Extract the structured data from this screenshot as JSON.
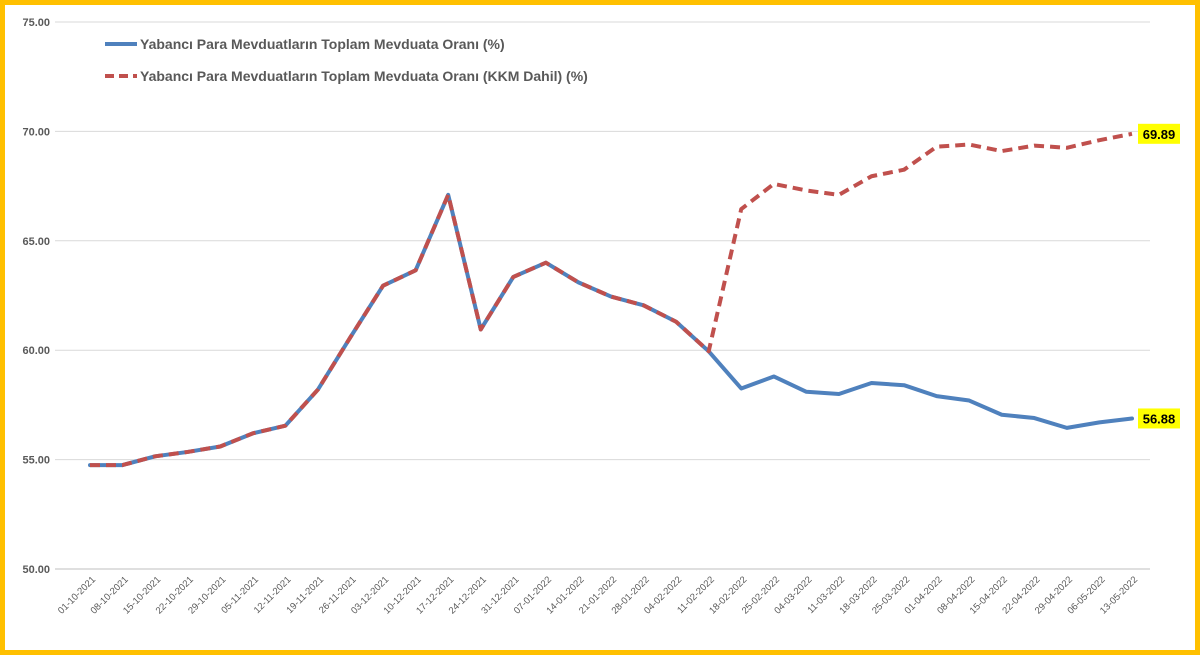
{
  "colors": {
    "frame": "#ffc000",
    "series_solid": "#4f81bd",
    "series_dashed": "#c0504d",
    "label_highlight": "#ffff00",
    "grid": "#d9d9d9"
  },
  "chart_data": {
    "type": "line",
    "title": "",
    "xlabel": "",
    "ylabel": "",
    "ylim": [
      50,
      75
    ],
    "yticks": [
      "50.00",
      "55.00",
      "60.00",
      "65.00",
      "70.00",
      "75.00"
    ],
    "grid": true,
    "legend_position": "top-left",
    "categories": [
      "01-10-2021",
      "08-10-2021",
      "15-10-2021",
      "22-10-2021",
      "29-10-2021",
      "05-11-2021",
      "12-11-2021",
      "19-11-2021",
      "26-11-2021",
      "03-12-2021",
      "10-12-2021",
      "17-12-2021",
      "24-12-2021",
      "31-12-2021",
      "07-01-2022",
      "14-01-2022",
      "21-01-2022",
      "28-01-2022",
      "04-02-2022",
      "11-02-2022",
      "18-02-2022",
      "25-02-2022",
      "04-03-2022",
      "11-03-2022",
      "18-03-2022",
      "25-03-2022",
      "01-04-2022",
      "08-04-2022",
      "15-04-2022",
      "22-04-2022",
      "29-04-2022",
      "06-05-2022",
      "13-05-2022"
    ],
    "series": [
      {
        "name": "Yabancı Para Mevduatların Toplam Mevduata Oranı (%)",
        "style": "solid",
        "values": [
          54.75,
          54.75,
          55.15,
          55.35,
          55.6,
          56.2,
          56.55,
          58.2,
          60.6,
          62.95,
          63.65,
          67.1,
          60.95,
          63.35,
          64.0,
          63.1,
          62.45,
          62.05,
          61.3,
          59.95,
          58.25,
          58.8,
          58.1,
          58.0,
          58.5,
          58.4,
          57.9,
          57.7,
          57.05,
          56.9,
          56.45,
          56.7,
          56.88
        ],
        "end_label": "56.88"
      },
      {
        "name": "Yabancı Para Mevduatların Toplam Mevduata Oranı (KKM Dahil) (%)",
        "style": "dashed",
        "values": [
          54.75,
          54.75,
          55.15,
          55.35,
          55.6,
          56.2,
          56.55,
          58.2,
          60.6,
          62.95,
          63.65,
          67.1,
          60.95,
          63.35,
          64.0,
          63.1,
          62.45,
          62.05,
          61.3,
          59.95,
          66.45,
          67.6,
          67.3,
          67.1,
          67.95,
          68.25,
          69.3,
          69.4,
          69.1,
          69.35,
          69.25,
          69.6,
          69.89
        ],
        "end_label": "69.89"
      }
    ]
  }
}
